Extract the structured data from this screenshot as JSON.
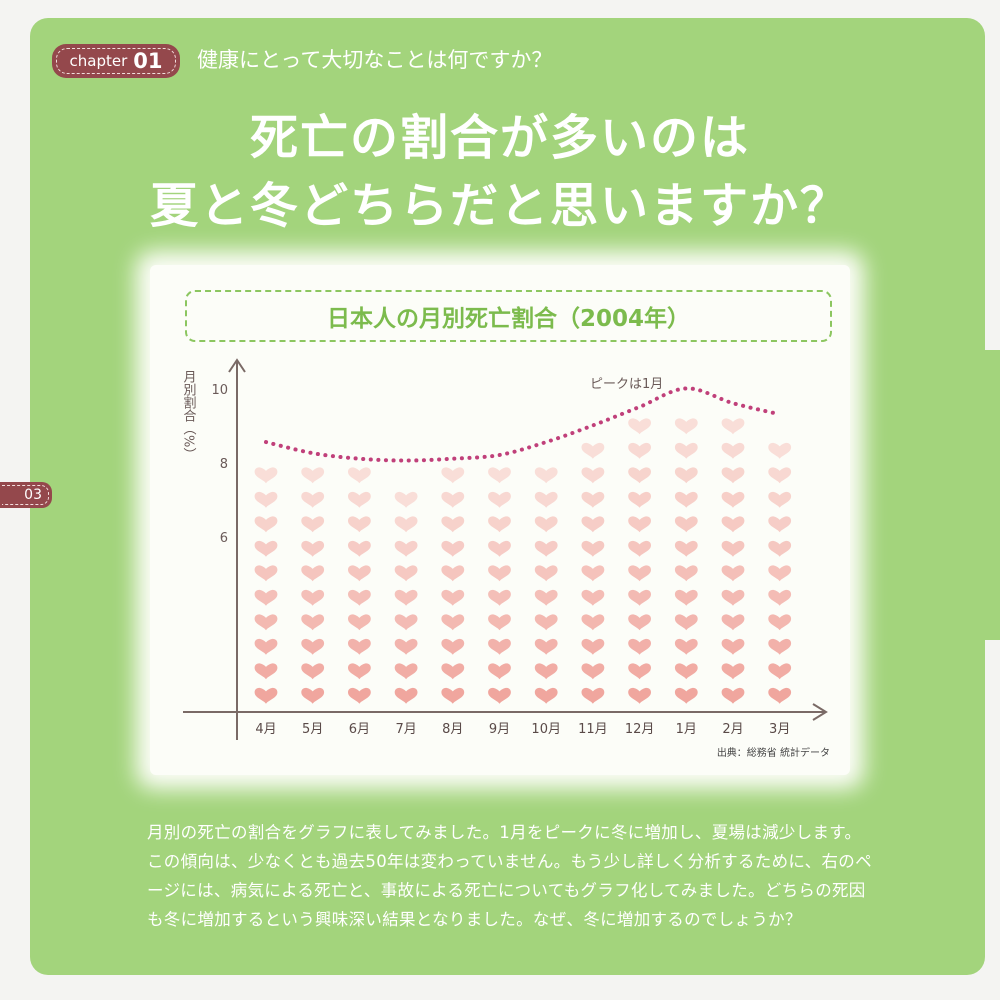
{
  "header": {
    "chapter_label": "chapter",
    "chapter_number": "01",
    "subtitle": "健康にとって大切なことは何ですか？",
    "title_line1": "死亡の割合が多いのは",
    "title_line2": "夏と冬どちらだと思いますか？"
  },
  "page_number": "03",
  "colors": {
    "background": "#a3d47c",
    "accent": "#94484c",
    "heart": "#f0a8a0",
    "trend_line": "#c0407a",
    "chart_title": "#7cbb4d"
  },
  "chart_data": {
    "type": "bar",
    "title": "日本人の月別死亡割合（2004年）",
    "ylabel": "月別割合（%）",
    "xlabel": "",
    "categories": [
      "4月",
      "5月",
      "6月",
      "7月",
      "8月",
      "9月",
      "10月",
      "11月",
      "12月",
      "1月",
      "2月",
      "3月"
    ],
    "values": [
      8.35,
      8.05,
      7.9,
      7.85,
      7.9,
      8.0,
      8.35,
      8.8,
      9.3,
      9.8,
      9.4,
      9.1
    ],
    "yticks": [
      "6",
      "8",
      "10"
    ],
    "annotation": "ピークは1月",
    "source": "出典：総務省 統計データ",
    "marker": "heart-icon",
    "grid": false
  },
  "body_text": "月別の死亡の割合をグラフに表してみました。1月をピークに冬に増加し、夏場は減少します。この傾向は、少なくとも過去50年は変わっていません。もう少し詳しく分析するために、右のページには、病気による死亡と、事故による死亡についてもグラフ化してみました。どちらの死因も冬に増加するという興味深い結果となりました。なぜ、冬に増加するのでしょうか？"
}
